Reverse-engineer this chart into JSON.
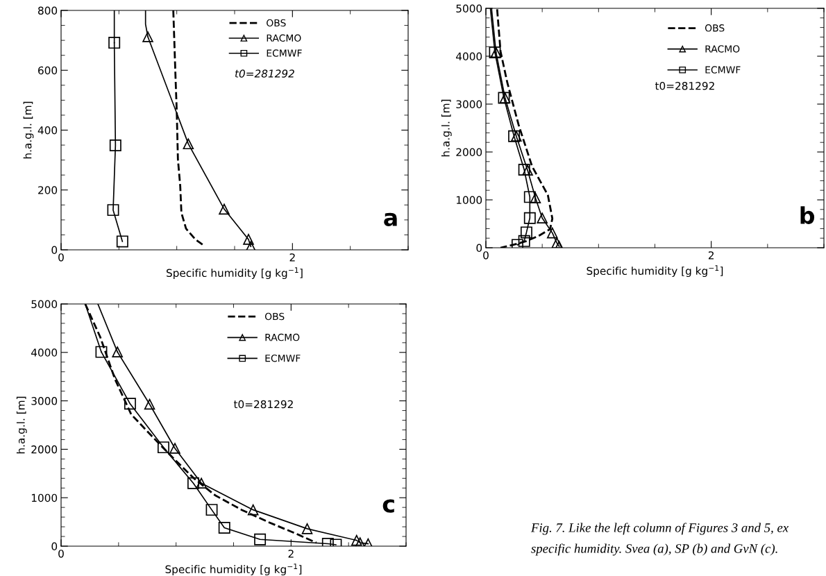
{
  "chart_data": [
    {
      "type": "line",
      "xlabel": "Specific humidity [g kg$^{−1}$]",
      "ylabel": "h.a.g.l. [m]",
      "xlim": [
        0,
        3
      ],
      "xticks": [
        0,
        2
      ],
      "ylim": [
        0,
        800
      ],
      "yticks": [
        0,
        200,
        400,
        600,
        800
      ],
      "legend": "top right",
      "grid": false,
      "series": [
        {
          "name": "OBS",
          "color": "#000000",
          "line_style": "dashed",
          "marker": "none",
          "x": [
            0.97,
            0.99,
            1.0,
            1.01,
            1.03,
            1.04,
            1.08,
            1.16,
            1.24
          ],
          "values": [
            800,
            568,
            461,
            302,
            213,
            124,
            71,
            35,
            13
          ]
        },
        {
          "name": "RACMO",
          "color": "#000000",
          "line_style": "solid",
          "marker": "triangle",
          "x": [
            0.75,
            1.1,
            1.41,
            1.62,
            1.64
          ],
          "values": [
            712,
            354,
            136,
            35,
            11
          ]
        },
        {
          "name": "ECMWF",
          "color": "#000000",
          "line_style": "solid",
          "marker": "square",
          "x": [
            0.46,
            0.47,
            0.45,
            0.53
          ],
          "values": [
            692,
            349,
            133,
            28
          ]
        },
        {
          "color": "#000000",
          "line_style": "solid",
          "marker": "none",
          "x": [
            0.73,
            0.73,
            0.75
          ],
          "values": [
            800,
            754,
            712
          ]
        },
        {
          "color": "#000000",
          "line_style": "solid",
          "marker": "none",
          "x": [
            0.46,
            0.46
          ],
          "values": [
            800,
            692
          ]
        }
      ],
      "annotations": [
        "t0=281292",
        "a"
      ]
    },
    {
      "type": "line",
      "xlabel": "Specific humidity [g kg$^{−1}$]",
      "ylabel": "h.a.g.l. [m]",
      "xlim": [
        0,
        3
      ],
      "xticks": [
        0,
        2
      ],
      "ylim": [
        0,
        5000
      ],
      "yticks": [
        0,
        1000,
        2000,
        3000,
        4000,
        5000
      ],
      "legend": "top right",
      "grid": false,
      "series": [
        {
          "name": "OBS",
          "color": "#000000",
          "line_style": "dashed",
          "marker": "none",
          "x": [
            0.1,
            0.13,
            0.19,
            0.29,
            0.41,
            0.55,
            0.59,
            0.57,
            0.47,
            0.36,
            0.24,
            0.13
          ],
          "values": [
            4980,
            4100,
            3450,
            2570,
            1700,
            1100,
            610,
            390,
            250,
            140,
            60,
            0
          ]
        },
        {
          "name": "RACMO",
          "color": "#000000",
          "line_style": "solid",
          "marker": "triangle",
          "x": [
            0.09,
            0.17,
            0.27,
            0.37,
            0.44,
            0.5,
            0.59,
            0.63,
            0.65
          ],
          "values": [
            4080,
            3130,
            2330,
            1620,
            1040,
            620,
            310,
            100,
            30
          ]
        },
        {
          "name": "ECMWF",
          "color": "#000000",
          "line_style": "solid",
          "marker": "square",
          "x": [
            0.08,
            0.16,
            0.25,
            0.34,
            0.39,
            0.39,
            0.36,
            0.34,
            0.28
          ],
          "values": [
            4080,
            3130,
            2330,
            1630,
            1060,
            620,
            320,
            140,
            60
          ]
        },
        {
          "color": "#000000",
          "line_style": "solid",
          "marker": "none",
          "x": [
            0.05,
            0.09
          ],
          "values": [
            5000,
            4080
          ]
        },
        {
          "color": "#000000",
          "line_style": "solid",
          "marker": "none",
          "x": [
            0.04,
            0.08
          ],
          "values": [
            5000,
            4080
          ]
        }
      ],
      "annotations": [
        "t0=281292",
        "b"
      ]
    },
    {
      "type": "line",
      "xlabel": "Specific humidity [g kg$^{−1}$]",
      "ylabel": "h.a.g.l. [m]",
      "xlim": [
        0,
        3
      ],
      "xticks": [
        0,
        2
      ],
      "ylim": [
        0,
        5000
      ],
      "yticks": [
        0,
        1000,
        2000,
        3000,
        4000,
        5000
      ],
      "legend": "top right",
      "grid": false,
      "series": [
        {
          "name": "OBS",
          "color": "#000000",
          "line_style": "dashed",
          "marker": "none",
          "x": [
            0.21,
            0.34,
            0.47,
            0.61,
            0.79,
            0.97,
            1.16,
            1.34,
            1.57,
            1.8,
            2.08,
            2.22
          ],
          "values": [
            5000,
            4320,
            3440,
            2720,
            2270,
            1830,
            1390,
            1050,
            750,
            500,
            220,
            70
          ]
        },
        {
          "name": "RACMO",
          "color": "#000000",
          "line_style": "solid",
          "marker": "triangle",
          "x": [
            0.49,
            0.77,
            0.99,
            1.22,
            1.67,
            2.14,
            2.57,
            2.6,
            2.67
          ],
          "values": [
            4010,
            2930,
            2020,
            1300,
            750,
            360,
            120,
            70,
            50
          ]
        },
        {
          "name": "ECMWF",
          "color": "#000000",
          "line_style": "solid",
          "marker": "square",
          "x": [
            0.35,
            0.6,
            0.89,
            1.15,
            1.31,
            1.42,
            1.73,
            2.32,
            2.39
          ],
          "values": [
            4010,
            2940,
            2040,
            1300,
            750,
            380,
            140,
            50,
            30
          ]
        },
        {
          "color": "#000000",
          "line_style": "solid",
          "marker": "none",
          "x": [
            0.32,
            0.49
          ],
          "values": [
            5000,
            4010
          ]
        },
        {
          "color": "#000000",
          "line_style": "solid",
          "marker": "none",
          "x": [
            0.21,
            0.35
          ],
          "values": [
            5000,
            4010
          ]
        }
      ],
      "annotations": [
        "t0=281292",
        "c",
        "Fig. 7. Like the left column of Figures 3 and 5, ex",
        "specific humidity. Svea (a), SP (b) and GvN (c)."
      ]
    }
  ]
}
